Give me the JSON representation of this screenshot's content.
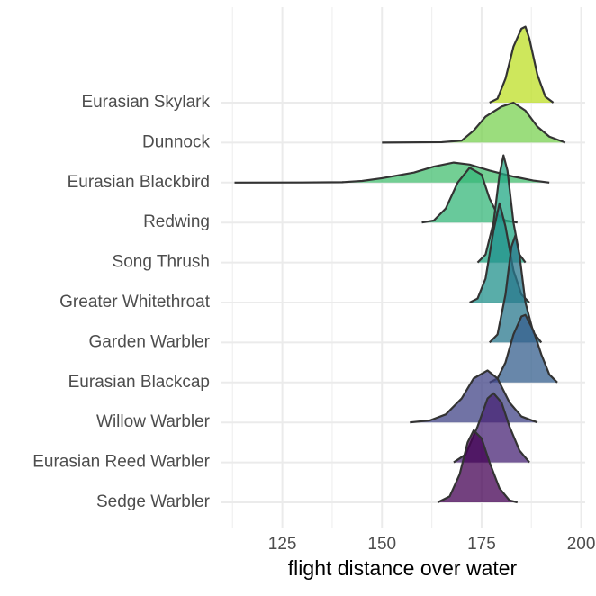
{
  "chart_data": {
    "type": "ridgeline",
    "x_label": "flight distance over water",
    "xlim": [
      109.5,
      201
    ],
    "xticks": [
      125,
      150,
      175,
      200
    ],
    "minor_xticks": [
      112.5,
      137.5,
      162.5,
      187.5
    ],
    "grid": true,
    "fill_opacity": 0.75,
    "series": [
      {
        "name": "Sedge Warbler",
        "color": "#440154",
        "x": [
          164,
          167,
          169.5,
          171.5,
          173,
          175,
          177,
          179.5,
          182,
          184
        ],
        "values": [
          0,
          0.15,
          0.7,
          1.5,
          1.8,
          1.6,
          1.0,
          0.35,
          0.05,
          0
        ]
      },
      {
        "name": "Eurasian Reed Warbler",
        "color": "#482475",
        "x": [
          168,
          171,
          174,
          176.5,
          178,
          180,
          182,
          184.5,
          187
        ],
        "values": [
          0,
          0.2,
          0.9,
          1.6,
          1.73,
          1.5,
          0.9,
          0.3,
          0
        ]
      },
      {
        "name": "Willow Warbler",
        "color": "#414487",
        "x": [
          157,
          162,
          166,
          170,
          173,
          176.5,
          179,
          182,
          185,
          189
        ],
        "values": [
          0,
          0.05,
          0.2,
          0.6,
          1.1,
          1.3,
          1.1,
          0.5,
          0.15,
          0
        ]
      },
      {
        "name": "Eurasian Blackcap",
        "color": "#355f8d",
        "x": [
          177,
          179,
          181,
          183,
          185,
          186,
          188,
          190,
          192,
          194
        ],
        "values": [
          0,
          0.1,
          0.5,
          1.2,
          1.65,
          1.69,
          1.3,
          0.7,
          0.2,
          0
        ]
      },
      {
        "name": "Garden Warbler",
        "color": "#2a788e",
        "x": [
          177,
          179,
          181,
          182.5,
          183.5,
          184.5,
          186,
          188,
          190
        ],
        "values": [
          0,
          0.2,
          1.2,
          2.4,
          2.68,
          2.2,
          1.0,
          0.25,
          0
        ]
      },
      {
        "name": "Greater Whitethroat",
        "color": "#21918c",
        "x": [
          172,
          174,
          176,
          178,
          179.5,
          181,
          183,
          185,
          187
        ],
        "values": [
          0,
          0.1,
          0.6,
          1.8,
          2.48,
          1.9,
          0.8,
          0.2,
          0
        ]
      },
      {
        "name": "Song Thrush",
        "color": "#22a884",
        "x": [
          174,
          176,
          178,
          179.5,
          180.5,
          181.5,
          183,
          184.5,
          186
        ],
        "values": [
          0,
          0.2,
          1.0,
          2.2,
          2.68,
          2.3,
          1.0,
          0.2,
          0
        ]
      },
      {
        "name": "Redwing",
        "color": "#35b779",
        "x": [
          160,
          163,
          166,
          169,
          172,
          175,
          177,
          179,
          181,
          184
        ],
        "values": [
          0,
          0.05,
          0.35,
          1.0,
          1.37,
          1.2,
          0.6,
          0.2,
          0.05,
          0
        ]
      },
      {
        "name": "Eurasian Blackbird",
        "color": "#44bf70",
        "x": [
          113,
          130,
          140,
          145,
          150,
          158,
          163,
          168,
          172,
          177,
          183,
          188,
          192
        ],
        "values": [
          0,
          0.003,
          0.01,
          0.04,
          0.11,
          0.25,
          0.4,
          0.5,
          0.45,
          0.3,
          0.15,
          0.05,
          0
        ]
      },
      {
        "name": "Dunnock",
        "color": "#7ad151",
        "x": [
          150,
          165,
          170,
          173,
          176,
          180,
          183,
          186,
          189,
          192,
          196
        ],
        "values": [
          0,
          0.01,
          0.05,
          0.3,
          0.65,
          0.9,
          1.0,
          0.8,
          0.4,
          0.15,
          0
        ]
      },
      {
        "name": "Eurasian Skylark",
        "color": "#bddf26",
        "x": [
          177,
          179,
          181,
          183,
          185,
          186,
          187,
          189,
          191,
          193
        ],
        "values": [
          0,
          0.1,
          0.6,
          1.4,
          1.85,
          1.9,
          1.6,
          0.7,
          0.15,
          0
        ]
      }
    ]
  }
}
